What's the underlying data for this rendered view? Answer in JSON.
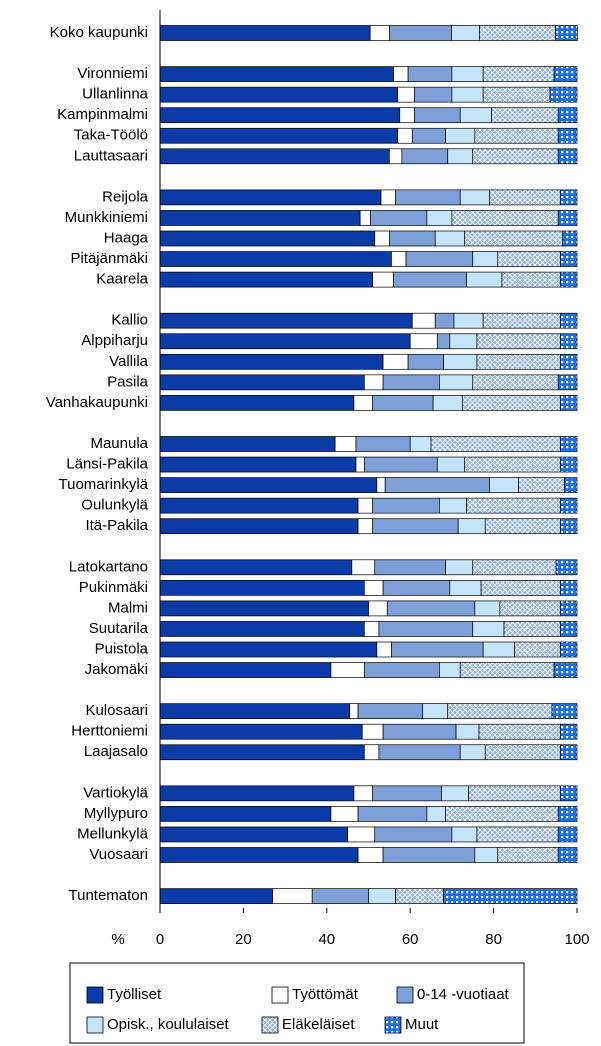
{
  "chart_data": {
    "type": "stacked-bar-horizontal",
    "categories": [
      "Koko kaupunki",
      null,
      "Vironniemi",
      "Ullanlinna",
      "Kampinmalmi",
      "Taka-Töölö",
      "Lauttasaari",
      null,
      "Reijola",
      "Munkkiniemi",
      "Haaga",
      "Pitäjänmäki",
      "Kaarela",
      null,
      "Kallio",
      "Alppiharju",
      "Vallila",
      "Pasila",
      "Vanhakaupunki",
      null,
      "Maunula",
      "Länsi-Pakila",
      "Tuomarinkylä",
      "Oulunkylä",
      "Itä-Pakila",
      null,
      "Latokartano",
      "Pukinmäki",
      "Malmi",
      "Suutarila",
      "Puistola",
      "Jakomäki",
      null,
      "Kulosaari",
      "Herttoniemi",
      "Laajasalo",
      null,
      "Vartiokylä",
      "Myllypuro",
      "Mellunkylä",
      "Vuosaari",
      null,
      "Tuntematon"
    ],
    "series": [
      {
        "name": "Työlliset",
        "color": "#0b3ba6",
        "pattern": "solid",
        "values": [
          50.4,
          null,
          56,
          57,
          57.5,
          57,
          55,
          null,
          53,
          48,
          51.5,
          55.5,
          51,
          null,
          60.5,
          60,
          53.5,
          49,
          46.5,
          null,
          42,
          47,
          52,
          47.5,
          47.5,
          null,
          46,
          49,
          50,
          49,
          52,
          41,
          null,
          45.5,
          48.5,
          49,
          null,
          46.5,
          41,
          45,
          47.5,
          null,
          27
        ]
      },
      {
        "name": "Työttömät",
        "color": "#ffffff",
        "pattern": "solid",
        "values": [
          4.6,
          null,
          3.5,
          4,
          3.5,
          3.5,
          3,
          null,
          3.5,
          2.5,
          3.5,
          3.5,
          5,
          null,
          5.5,
          6.5,
          6,
          4.5,
          4.5,
          null,
          5,
          2,
          2,
          3.5,
          3.5,
          null,
          5.5,
          4.5,
          4.5,
          3.5,
          3.5,
          8,
          null,
          2,
          5,
          3.5,
          null,
          4.5,
          6.5,
          6.5,
          6,
          null,
          9.5
        ]
      },
      {
        "name": "0-14 -vuotiaat",
        "color": "#7f9fd8",
        "pattern": "solid",
        "values": [
          14.9,
          null,
          10.5,
          9,
          11,
          8,
          11,
          null,
          15.5,
          13.5,
          11,
          16,
          17.5,
          null,
          4.5,
          3,
          8.5,
          13.5,
          14.5,
          null,
          13,
          17.5,
          25,
          16,
          20.5,
          null,
          17,
          16,
          21,
          22.5,
          22,
          18,
          null,
          15.5,
          17.5,
          19.5,
          null,
          16.5,
          16.5,
          18.5,
          22,
          null,
          13.5
        ]
      },
      {
        "name": "Opisk., koululaiset",
        "color": "#c6e4f8",
        "pattern": "solid",
        "values": [
          6.7,
          null,
          7.5,
          7.5,
          7.5,
          7,
          6,
          null,
          7,
          6,
          7,
          6,
          8.5,
          null,
          7,
          6.5,
          8,
          8,
          7,
          null,
          5,
          6.5,
          7,
          6.5,
          6.5,
          null,
          6.5,
          7.5,
          6,
          7.5,
          7.5,
          5,
          null,
          6,
          5.5,
          6,
          null,
          6.5,
          4.5,
          6,
          5.5,
          null,
          6.5
        ]
      },
      {
        "name": "Eläkeläiset",
        "color": "#8fb0e0",
        "pattern": "hatch",
        "values": [
          18.2,
          null,
          17,
          16,
          16,
          20,
          20.5,
          null,
          17,
          25.5,
          23.5,
          15,
          14,
          null,
          18.5,
          20,
          20,
          20.5,
          23.5,
          null,
          31,
          23,
          11,
          22.5,
          18,
          null,
          20,
          19,
          14.5,
          13.5,
          11,
          22.5,
          null,
          25,
          19.5,
          18,
          null,
          22,
          27,
          19.5,
          14.5,
          null,
          11.5
        ]
      },
      {
        "name": "Muut",
        "color": "#1a6ee8",
        "pattern": "dots",
        "values": [
          5.3,
          null,
          5.5,
          6.5,
          4.5,
          4.5,
          4.5,
          null,
          4,
          4.5,
          3.5,
          4,
          4,
          null,
          4,
          4,
          4,
          4.5,
          4,
          null,
          4,
          4,
          3,
          4,
          4,
          null,
          5,
          4,
          4,
          4,
          4,
          5.5,
          null,
          6,
          4,
          4,
          null,
          4,
          4.5,
          4.5,
          4.5,
          null,
          32
        ]
      }
    ],
    "x_label": "%",
    "xlim": [
      0,
      100
    ],
    "xticks": [
      0,
      20,
      40,
      60,
      80,
      100
    ]
  }
}
